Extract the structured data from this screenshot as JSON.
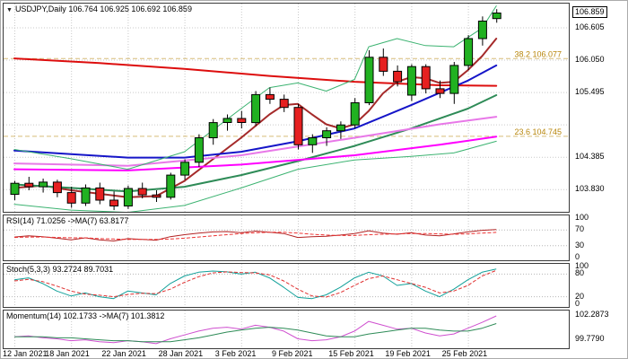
{
  "header": {
    "dropdown_icon": "▼",
    "symbol": "USDJPY,Daily",
    "ohlc": "106.764 106.925 106.692 106.859",
    "current_price": "106.859"
  },
  "style": {
    "grid": "#c9c9c9",
    "level": "#b5b5b5",
    "panel_border": "#3a3a3a",
    "bull": "#21b121",
    "bear": "#e62020",
    "wick": "#000000",
    "fib": "#b8860b",
    "axis_text": "#000000"
  },
  "time_axis": {
    "ticks": [
      {
        "label": "12 Jan 2021",
        "index": 0
      },
      {
        "label": "18 Jan 2021",
        "index": 4
      },
      {
        "label": "22 Jan 2021",
        "index": 8
      },
      {
        "label": "28 Jan 2021",
        "index": 12
      },
      {
        "label": "3 Feb 2021",
        "index": 16
      },
      {
        "label": "9 Feb 2021",
        "index": 20
      },
      {
        "label": "15 Feb 2021",
        "index": 24
      },
      {
        "label": "19 Feb 2021",
        "index": 28
      },
      {
        "label": "25 Feb 2021",
        "index": 32
      }
    ]
  },
  "chart_data": [
    {
      "type": "candlestick",
      "name": "USDJPY Daily price panel",
      "ylim": [
        103.45,
        107.02
      ],
      "current_price": 106.859,
      "axis_labels": [
        {
          "text": "106.605",
          "value": 106.605
        },
        {
          "text": "106.050",
          "value": 106.05
        },
        {
          "text": "105.495",
          "value": 105.495
        },
        {
          "text": "104.385",
          "value": 104.385
        },
        {
          "text": "103.830",
          "value": 103.83
        }
      ],
      "grid_extra": [
        104.94
      ],
      "fib_levels": [
        {
          "label": "38.2 106.077",
          "value": 106.077
        },
        {
          "label": "23.6 104.745",
          "value": 104.745
        }
      ],
      "candles": [
        [
          103.75,
          103.98,
          103.65,
          103.94
        ],
        [
          103.94,
          104.05,
          103.82,
          103.88
        ],
        [
          103.88,
          104.02,
          103.78,
          103.96
        ],
        [
          103.96,
          104.0,
          103.7,
          103.78
        ],
        [
          103.78,
          103.88,
          103.52,
          103.6
        ],
        [
          103.6,
          103.92,
          103.55,
          103.86
        ],
        [
          103.86,
          103.95,
          103.58,
          103.65
        ],
        [
          103.65,
          103.8,
          103.48,
          103.55
        ],
        [
          103.55,
          103.9,
          103.5,
          103.85
        ],
        [
          103.85,
          103.95,
          103.68,
          103.74
        ],
        [
          103.74,
          103.82,
          103.62,
          103.7
        ],
        [
          103.7,
          104.12,
          103.66,
          104.08
        ],
        [
          104.08,
          104.35,
          104.0,
          104.3
        ],
        [
          104.3,
          104.78,
          104.22,
          104.72
        ],
        [
          104.72,
          105.04,
          104.6,
          104.98
        ],
        [
          104.98,
          105.12,
          104.84,
          105.05
        ],
        [
          105.05,
          105.18,
          104.88,
          104.98
        ],
        [
          104.98,
          105.52,
          104.92,
          105.46
        ],
        [
          105.46,
          105.58,
          105.3,
          105.38
        ],
        [
          105.38,
          105.46,
          105.16,
          105.24
        ],
        [
          105.24,
          105.3,
          104.52,
          104.6
        ],
        [
          104.6,
          104.78,
          104.46,
          104.72
        ],
        [
          104.72,
          104.9,
          104.58,
          104.84
        ],
        [
          104.84,
          105.0,
          104.7,
          104.94
        ],
        [
          104.94,
          105.4,
          104.88,
          105.32
        ],
        [
          105.32,
          106.22,
          105.28,
          106.1
        ],
        [
          106.1,
          106.25,
          105.78,
          105.86
        ],
        [
          105.86,
          105.96,
          105.6,
          105.68
        ],
        [
          105.45,
          105.98,
          105.35,
          105.94
        ],
        [
          105.94,
          105.98,
          105.48,
          105.56
        ],
        [
          105.56,
          105.7,
          105.4,
          105.48
        ],
        [
          105.48,
          106.02,
          105.3,
          105.96
        ],
        [
          105.96,
          106.48,
          105.88,
          106.42
        ],
        [
          106.42,
          106.8,
          106.3,
          106.72
        ],
        [
          106.764,
          106.925,
          106.692,
          106.859
        ]
      ],
      "overlays": [
        {
          "name": "ma-slow-red",
          "color": "#dd0d0d",
          "width": 2,
          "points": [
            [
              0,
              106.08
            ],
            [
              6,
              106.0
            ],
            [
              12,
              105.9
            ],
            [
              18,
              105.78
            ],
            [
              24,
              105.68
            ],
            [
              30,
              105.62
            ],
            [
              34,
              105.61
            ]
          ]
        },
        {
          "name": "ma-fast-crimson",
          "color": "#a52a2a",
          "width": 2,
          "points": [
            [
              0,
              103.86
            ],
            [
              2,
              103.9
            ],
            [
              4,
              103.82
            ],
            [
              6,
              103.76
            ],
            [
              8,
              103.7
            ],
            [
              10,
              103.72
            ],
            [
              12,
              103.98
            ],
            [
              14,
              104.35
            ],
            [
              16,
              104.72
            ],
            [
              18,
              105.12
            ],
            [
              19,
              105.28
            ],
            [
              20,
              105.3
            ],
            [
              21,
              105.12
            ],
            [
              22,
              104.95
            ],
            [
              23,
              104.88
            ],
            [
              24,
              104.95
            ],
            [
              25,
              105.18
            ],
            [
              26,
              105.48
            ],
            [
              27,
              105.68
            ],
            [
              28,
              105.76
            ],
            [
              29,
              105.74
            ],
            [
              30,
              105.66
            ],
            [
              31,
              105.68
            ],
            [
              32,
              105.88
            ],
            [
              33,
              106.12
            ],
            [
              34,
              106.42
            ]
          ]
        },
        {
          "name": "ma-mid-blue",
          "color": "#1515c8",
          "width": 2,
          "points": [
            [
              0,
              104.5
            ],
            [
              4,
              104.44
            ],
            [
              8,
              104.38
            ],
            [
              12,
              104.38
            ],
            [
              16,
              104.48
            ],
            [
              20,
              104.66
            ],
            [
              24,
              104.88
            ],
            [
              28,
              105.28
            ],
            [
              32,
              105.7
            ],
            [
              34,
              105.96
            ]
          ]
        },
        {
          "name": "ma-long-green",
          "color": "#2e8b57",
          "width": 2,
          "points": [
            [
              0,
              103.92
            ],
            [
              4,
              103.86
            ],
            [
              8,
              103.8
            ],
            [
              12,
              103.88
            ],
            [
              16,
              104.08
            ],
            [
              20,
              104.32
            ],
            [
              24,
              104.58
            ],
            [
              28,
              104.88
            ],
            [
              32,
              105.22
            ],
            [
              34,
              105.45
            ]
          ]
        },
        {
          "name": "ma-magenta",
          "color": "#ff00ff",
          "width": 2,
          "points": [
            [
              0,
              104.18
            ],
            [
              8,
              104.16
            ],
            [
              16,
              104.26
            ],
            [
              24,
              104.42
            ],
            [
              30,
              104.6
            ],
            [
              34,
              104.74
            ]
          ]
        },
        {
          "name": "ma-pink",
          "color": "#e878e8",
          "width": 2,
          "points": [
            [
              0,
              104.28
            ],
            [
              8,
              104.24
            ],
            [
              16,
              104.42
            ],
            [
              24,
              104.72
            ],
            [
              30,
              104.95
            ],
            [
              34,
              105.08
            ]
          ]
        },
        {
          "name": "band-upper",
          "color": "#3cb371",
          "width": 1,
          "points": [
            [
              0,
              104.52
            ],
            [
              4,
              104.36
            ],
            [
              8,
              104.18
            ],
            [
              12,
              104.48
            ],
            [
              16,
              105.22
            ],
            [
              18,
              105.58
            ],
            [
              20,
              105.66
            ],
            [
              22,
              105.52
            ],
            [
              24,
              105.72
            ],
            [
              25,
              106.28
            ],
            [
              27,
              106.42
            ],
            [
              29,
              106.3
            ],
            [
              31,
              106.28
            ],
            [
              33,
              106.6
            ],
            [
              34,
              106.98
            ]
          ]
        },
        {
          "name": "band-lower",
          "color": "#3cb371",
          "width": 1,
          "points": [
            [
              0,
              103.58
            ],
            [
              4,
              103.48
            ],
            [
              8,
              103.44
            ],
            [
              12,
              103.56
            ],
            [
              16,
              103.86
            ],
            [
              20,
              104.18
            ],
            [
              24,
              104.34
            ],
            [
              28,
              104.4
            ],
            [
              31,
              104.46
            ],
            [
              34,
              104.66
            ]
          ]
        }
      ]
    },
    {
      "type": "line",
      "label": "RSI(14) 71.0256  ->MA(7) 63.8177",
      "ylim": [
        0,
        100
      ],
      "levels": [
        70,
        30
      ],
      "axis_labels": [
        {
          "text": "100",
          "value": 100
        },
        {
          "text": "70",
          "value": 70
        },
        {
          "text": "30",
          "value": 30
        },
        {
          "text": "0",
          "value": 0
        }
      ],
      "series": [
        {
          "name": "rsi",
          "color": "#b22222",
          "width": 1,
          "values": [
            52,
            55,
            53,
            49,
            45,
            50,
            45,
            42,
            48,
            46,
            44,
            53,
            58,
            62,
            65,
            66,
            63,
            67,
            64,
            61,
            51,
            53,
            54,
            57,
            61,
            68,
            62,
            59,
            63,
            57,
            55,
            60,
            65,
            69,
            71.0256
          ]
        },
        {
          "name": "rsi-ma",
          "color": "#ee3333",
          "width": 1,
          "dash": "4,2",
          "values": [
            51,
            52,
            52,
            51,
            50,
            50,
            48,
            47,
            46,
            46,
            46,
            47,
            49,
            52,
            55,
            58,
            61,
            63,
            64,
            64,
            62,
            59,
            57,
            56,
            56,
            58,
            59,
            60,
            61,
            61,
            60,
            59,
            60,
            62,
            63.8177
          ]
        }
      ]
    },
    {
      "type": "line",
      "label": "Stoch(5,3,3) 93.2724 89.7031",
      "ylim": [
        0,
        100
      ],
      "levels": [
        80,
        20
      ],
      "axis_labels": [
        {
          "text": "100",
          "value": 100
        },
        {
          "text": "80",
          "value": 80
        },
        {
          "text": "20",
          "value": 20
        },
        {
          "text": "0",
          "value": 0
        }
      ],
      "series": [
        {
          "name": "stoch-k",
          "color": "#12a19a",
          "width": 1,
          "values": [
            65,
            70,
            55,
            35,
            22,
            30,
            20,
            15,
            35,
            30,
            25,
            55,
            75,
            85,
            88,
            86,
            80,
            85,
            70,
            45,
            18,
            15,
            25,
            45,
            70,
            85,
            75,
            50,
            55,
            35,
            20,
            40,
            65,
            85,
            93.2724
          ]
        },
        {
          "name": "stoch-d",
          "color": "#e03030",
          "width": 1,
          "dash": "4,2",
          "values": [
            62,
            66,
            60,
            48,
            35,
            27,
            24,
            20,
            26,
            29,
            28,
            40,
            58,
            73,
            83,
            86,
            84,
            83,
            78,
            62,
            40,
            22,
            19,
            31,
            50,
            68,
            75,
            65,
            55,
            45,
            30,
            35,
            50,
            75,
            89.7031
          ]
        }
      ]
    },
    {
      "type": "line",
      "label": "Momentum(14) 102.1733  ->MA(7) 101.3812",
      "ylim": [
        99.1,
        102.45
      ],
      "levels": [],
      "axis_labels": [
        {
          "text": "102.2873",
          "value": 102.2873
        },
        {
          "text": "99.7790",
          "value": 99.779
        }
      ],
      "series": [
        {
          "name": "momentum",
          "color": "#cf4fcf",
          "width": 1,
          "values": [
            100.0,
            100.1,
            99.9,
            99.8,
            99.6,
            99.7,
            99.5,
            99.4,
            99.6,
            99.5,
            99.3,
            99.8,
            100.2,
            100.6,
            100.9,
            101.0,
            100.8,
            101.2,
            101.0,
            100.6,
            99.8,
            99.6,
            99.7,
            100.0,
            100.6,
            101.6,
            101.2,
            100.8,
            100.9,
            100.4,
            100.1,
            100.3,
            100.9,
            101.5,
            102.1733
          ]
        },
        {
          "name": "momentum-ma",
          "color": "#2e8b57",
          "width": 1,
          "values": [
            100.0,
            100.0,
            100.0,
            99.9,
            99.9,
            99.8,
            99.7,
            99.6,
            99.6,
            99.5,
            99.5,
            99.5,
            99.7,
            99.9,
            100.2,
            100.5,
            100.7,
            100.9,
            101.0,
            100.9,
            100.7,
            100.4,
            100.1,
            100.0,
            100.0,
            100.3,
            100.5,
            100.7,
            100.9,
            100.9,
            100.7,
            100.6,
            100.6,
            100.9,
            101.3812
          ]
        }
      ]
    }
  ]
}
